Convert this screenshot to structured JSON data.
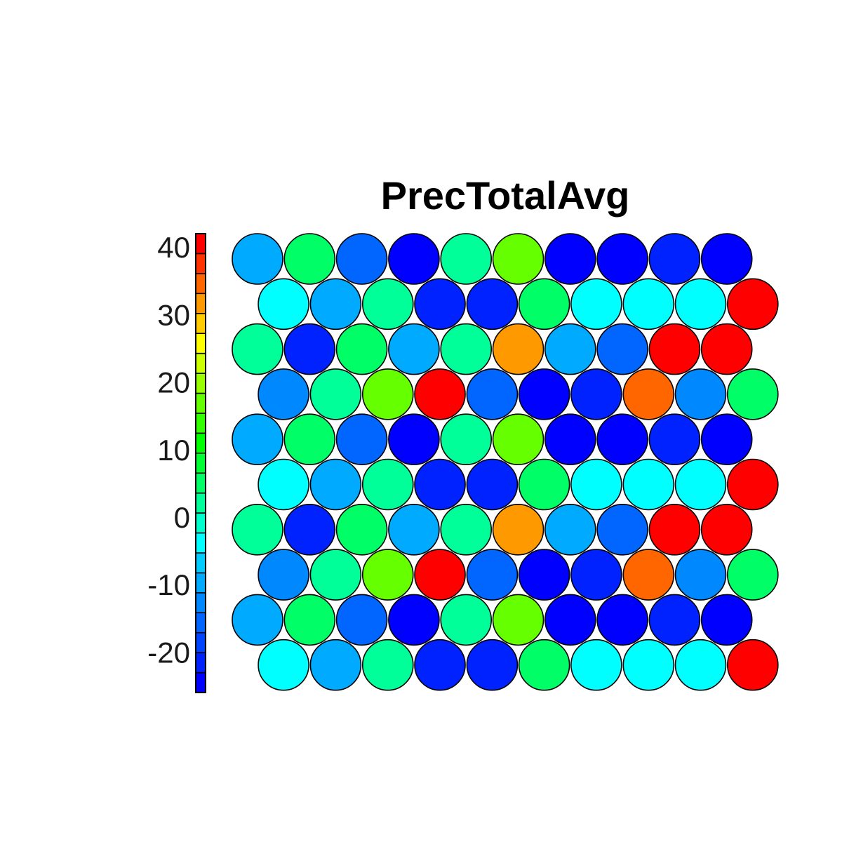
{
  "chart_data": {
    "type": "heatmap",
    "title": "PrecTotalAvg",
    "layout": "hexagonal",
    "grid_rows": 10,
    "grid_cols": 10,
    "color_scale": {
      "min": -26,
      "max": 42,
      "ticks": [
        40,
        30,
        20,
        10,
        0,
        -10,
        -20
      ],
      "tick_labels": [
        "40",
        "30",
        "20",
        "10",
        "0",
        "-10",
        "-20"
      ],
      "levels": 21,
      "palette": [
        "#0000ff",
        "#0022ff",
        "#0044ff",
        "#0066ff",
        "#0088ff",
        "#00aaff",
        "#00ccff",
        "#00ffff",
        "#00ffcc",
        "#00ff99",
        "#00ff66",
        "#00ff33",
        "#00ff00",
        "#33ff00",
        "#66ff00",
        "#99ff00",
        "#ccff00",
        "#ffff00",
        "#ffcc00",
        "#ff9900",
        "#ff6600",
        "#ff3300",
        "#ff0000"
      ]
    },
    "values": [
      [
        -9,
        4,
        -17,
        -25,
        2,
        18,
        -25,
        -25,
        -21,
        -25
      ],
      [
        -4,
        -9,
        2,
        -21,
        -21,
        5,
        -4,
        -4,
        -4,
        40
      ],
      [
        2,
        -21,
        5,
        -9,
        2,
        32,
        -9,
        -17,
        40,
        40
      ],
      [
        -13,
        2,
        16,
        40,
        -17,
        -25,
        -21,
        36,
        -13,
        6
      ],
      [
        -9,
        4,
        -17,
        -25,
        2,
        18,
        -25,
        -25,
        -21,
        -25
      ],
      [
        -4,
        -9,
        2,
        -21,
        -21,
        5,
        -4,
        -4,
        -4,
        40
      ],
      [
        2,
        -21,
        5,
        -9,
        2,
        32,
        -9,
        -17,
        40,
        40
      ],
      [
        -13,
        2,
        16,
        40,
        -17,
        -25,
        -21,
        36,
        -13,
        6
      ],
      [
        -9,
        4,
        -17,
        -25,
        2,
        18,
        -25,
        -25,
        -21,
        -25
      ],
      [
        -4,
        -9,
        2,
        -21,
        -21,
        5,
        -4,
        -4,
        -4,
        40
      ]
    ]
  }
}
